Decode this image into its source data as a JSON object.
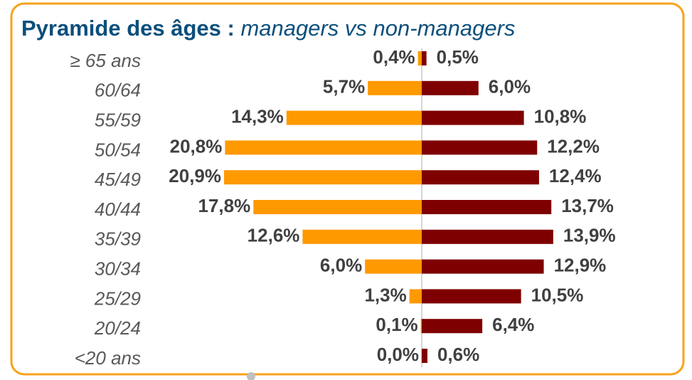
{
  "chart_data": {
    "type": "pyramid",
    "title": "Pyramide des âges :",
    "subtitle": "managers vs non-managers",
    "categories": [
      "≥ 65 ans",
      "60/64",
      "55/59",
      "50/54",
      "45/49",
      "40/44",
      "35/39",
      "30/34",
      "25/29",
      "20/24",
      "<20 ans"
    ],
    "series": [
      {
        "color": "#ff9900",
        "values": [
          0.4,
          5.7,
          14.3,
          20.8,
          20.9,
          17.8,
          12.6,
          6.0,
          1.3,
          0.1,
          0.0
        ],
        "value_labels": [
          "0,4%",
          "5,7%",
          "14,3%",
          "20,8%",
          "20,9%",
          "17,8%",
          "12,6%",
          "6,0%",
          "1,3%",
          "0,1%",
          "0,0%"
        ]
      },
      {
        "color": "#7f0000",
        "values": [
          0.5,
          6.0,
          10.8,
          12.2,
          12.4,
          13.7,
          13.9,
          12.9,
          10.5,
          6.4,
          0.6
        ],
        "value_labels": [
          "0,5%",
          "6,0%",
          "10,8%",
          "12,2%",
          "12,4%",
          "13,7%",
          "13,9%",
          "12,9%",
          "10,5%",
          "6,4%",
          "0,6%"
        ]
      }
    ]
  }
}
